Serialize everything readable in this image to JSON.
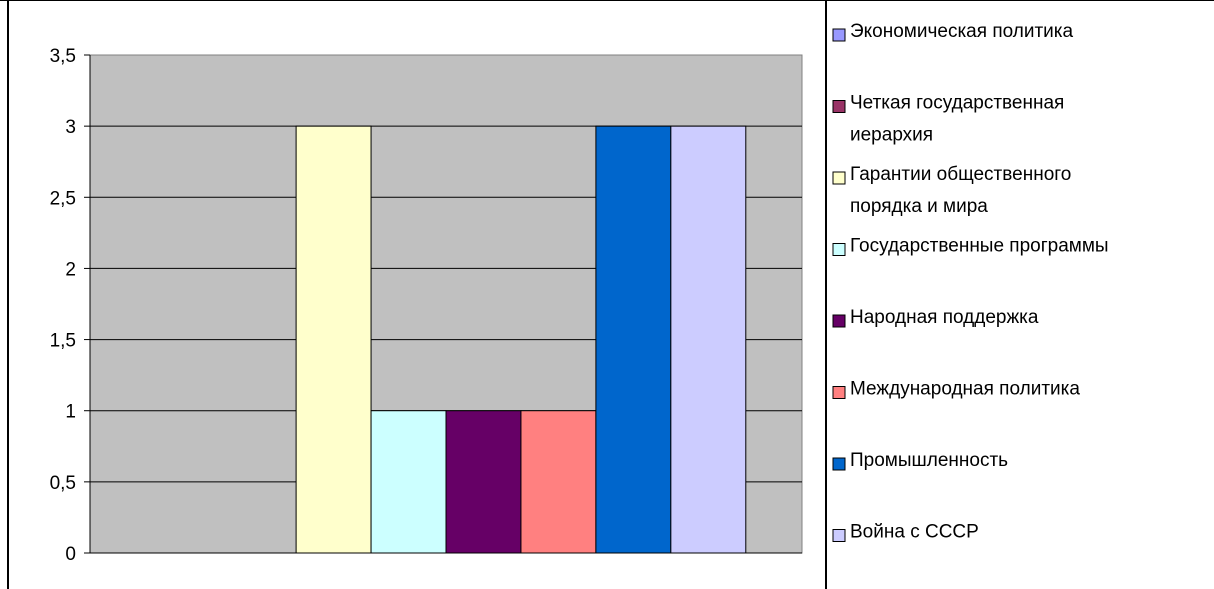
{
  "chart_data": {
    "type": "bar",
    "categories": [
      ""
    ],
    "series": [
      {
        "name": "Экономическая политика",
        "values": [
          0
        ],
        "color": "#9999FF"
      },
      {
        "name": "Четкая государственная иерархия",
        "values": [
          0
        ],
        "color": "#993366"
      },
      {
        "name": "Гарантии общественного порядка и мира",
        "values": [
          3
        ],
        "color": "#FFFFCC"
      },
      {
        "name": "Государственные программы",
        "values": [
          1
        ],
        "color": "#CCFFFF"
      },
      {
        "name": "Народная поддержка",
        "values": [
          1
        ],
        "color": "#660066"
      },
      {
        "name": "Международная политика",
        "values": [
          1
        ],
        "color": "#FF8080"
      },
      {
        "name": "Промышленность",
        "values": [
          3
        ],
        "color": "#0066CC"
      },
      {
        "name": "Война с СССР",
        "values": [
          3
        ],
        "color": "#CCCCFF"
      }
    ],
    "legend_lines": [
      [
        "Экономическая политика"
      ],
      [
        "Четкая государственная",
        "иерархия"
      ],
      [
        "Гарантии общественного",
        "порядка и мира"
      ],
      [
        "Государственные программы"
      ],
      [
        "Народная поддержка"
      ],
      [
        "Международная политика"
      ],
      [
        "Промышленность"
      ],
      [
        "Война с СССР"
      ]
    ],
    "y_ticks": [
      "0",
      "0,5",
      "1",
      "1,5",
      "2",
      "2,5",
      "3",
      "3,5"
    ],
    "ylim": [
      0,
      3.5
    ],
    "grid": true,
    "legend_position": "right",
    "plot_background": "#C0C0C0"
  }
}
